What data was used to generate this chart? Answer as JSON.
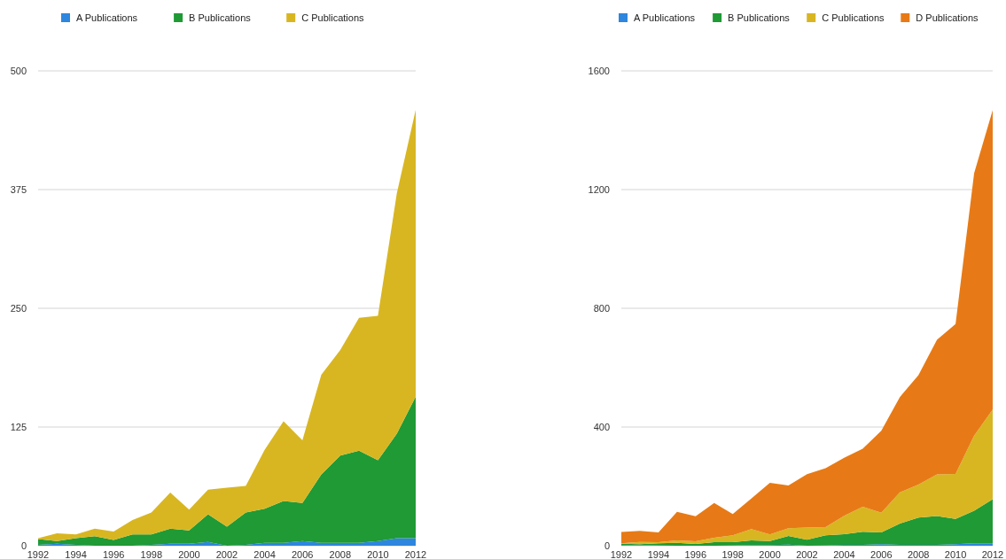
{
  "chart_data": [
    {
      "type": "area",
      "stacked": true,
      "legend": "top",
      "grid": "y",
      "xlim": [
        1992,
        2012
      ],
      "xticks": [
        1992,
        1994,
        1996,
        1998,
        2000,
        2002,
        2004,
        2006,
        2008,
        2010,
        2012
      ],
      "ylim": [
        0,
        500
      ],
      "yticks": [
        0,
        125,
        250,
        375,
        500
      ],
      "x": [
        1992,
        1993,
        1994,
        1995,
        1996,
        1997,
        1998,
        1999,
        2000,
        2001,
        2002,
        2003,
        2004,
        2005,
        2006,
        2007,
        2008,
        2009,
        2010,
        2011,
        2012
      ],
      "series": [
        {
          "name": "A Publications",
          "color": "#2e86de",
          "values": [
            1,
            2,
            1,
            0,
            0,
            0,
            1,
            2,
            2,
            4,
            0,
            1,
            3,
            3,
            5,
            3,
            3,
            3,
            5,
            8,
            8
          ]
        },
        {
          "name": "B Publications",
          "color": "#1f9a35",
          "values": [
            6,
            3,
            7,
            10,
            6,
            12,
            11,
            16,
            14,
            29,
            20,
            34,
            36,
            44,
            40,
            72,
            92,
            97,
            85,
            110,
            149
          ]
        },
        {
          "name": "C Publications",
          "color": "#d8b622",
          "values": [
            1,
            8,
            4,
            8,
            9,
            15,
            23,
            38,
            22,
            26,
            41,
            28,
            62,
            84,
            66,
            105,
            111,
            140,
            152,
            253,
            302
          ]
        }
      ]
    },
    {
      "type": "area",
      "stacked": true,
      "legend": "top",
      "grid": "y",
      "xlim": [
        1992,
        2012
      ],
      "xticks": [
        1992,
        1994,
        1996,
        1998,
        2000,
        2002,
        2004,
        2006,
        2008,
        2010,
        2012
      ],
      "ylim": [
        0,
        1600
      ],
      "yticks": [
        0,
        400,
        800,
        1200,
        1600
      ],
      "x": [
        1992,
        1993,
        1994,
        1995,
        1996,
        1997,
        1998,
        1999,
        2000,
        2001,
        2002,
        2003,
        2004,
        2005,
        2006,
        2007,
        2008,
        2009,
        2010,
        2011,
        2012
      ],
      "series": [
        {
          "name": "A Publications",
          "color": "#2e86de",
          "values": [
            1,
            2,
            1,
            0,
            0,
            0,
            1,
            2,
            2,
            4,
            0,
            1,
            3,
            3,
            5,
            3,
            3,
            3,
            5,
            8,
            8
          ]
        },
        {
          "name": "B Publications",
          "color": "#1f9a35",
          "values": [
            6,
            3,
            7,
            10,
            6,
            12,
            11,
            16,
            14,
            29,
            20,
            34,
            36,
            44,
            40,
            72,
            92,
            97,
            85,
            110,
            149
          ]
        },
        {
          "name": "C Publications",
          "color": "#d8b622",
          "values": [
            1,
            8,
            4,
            8,
            9,
            15,
            23,
            38,
            22,
            26,
            41,
            28,
            62,
            84,
            66,
            105,
            111,
            140,
            152,
            253,
            302
          ]
        },
        {
          "name": "D Publications",
          "color": "#e77a16",
          "values": [
            38,
            37,
            33,
            96,
            84,
            117,
            72,
            103,
            174,
            144,
            180,
            198,
            195,
            196,
            276,
            321,
            369,
            454,
            505,
            884,
            1009
          ]
        }
      ]
    }
  ]
}
